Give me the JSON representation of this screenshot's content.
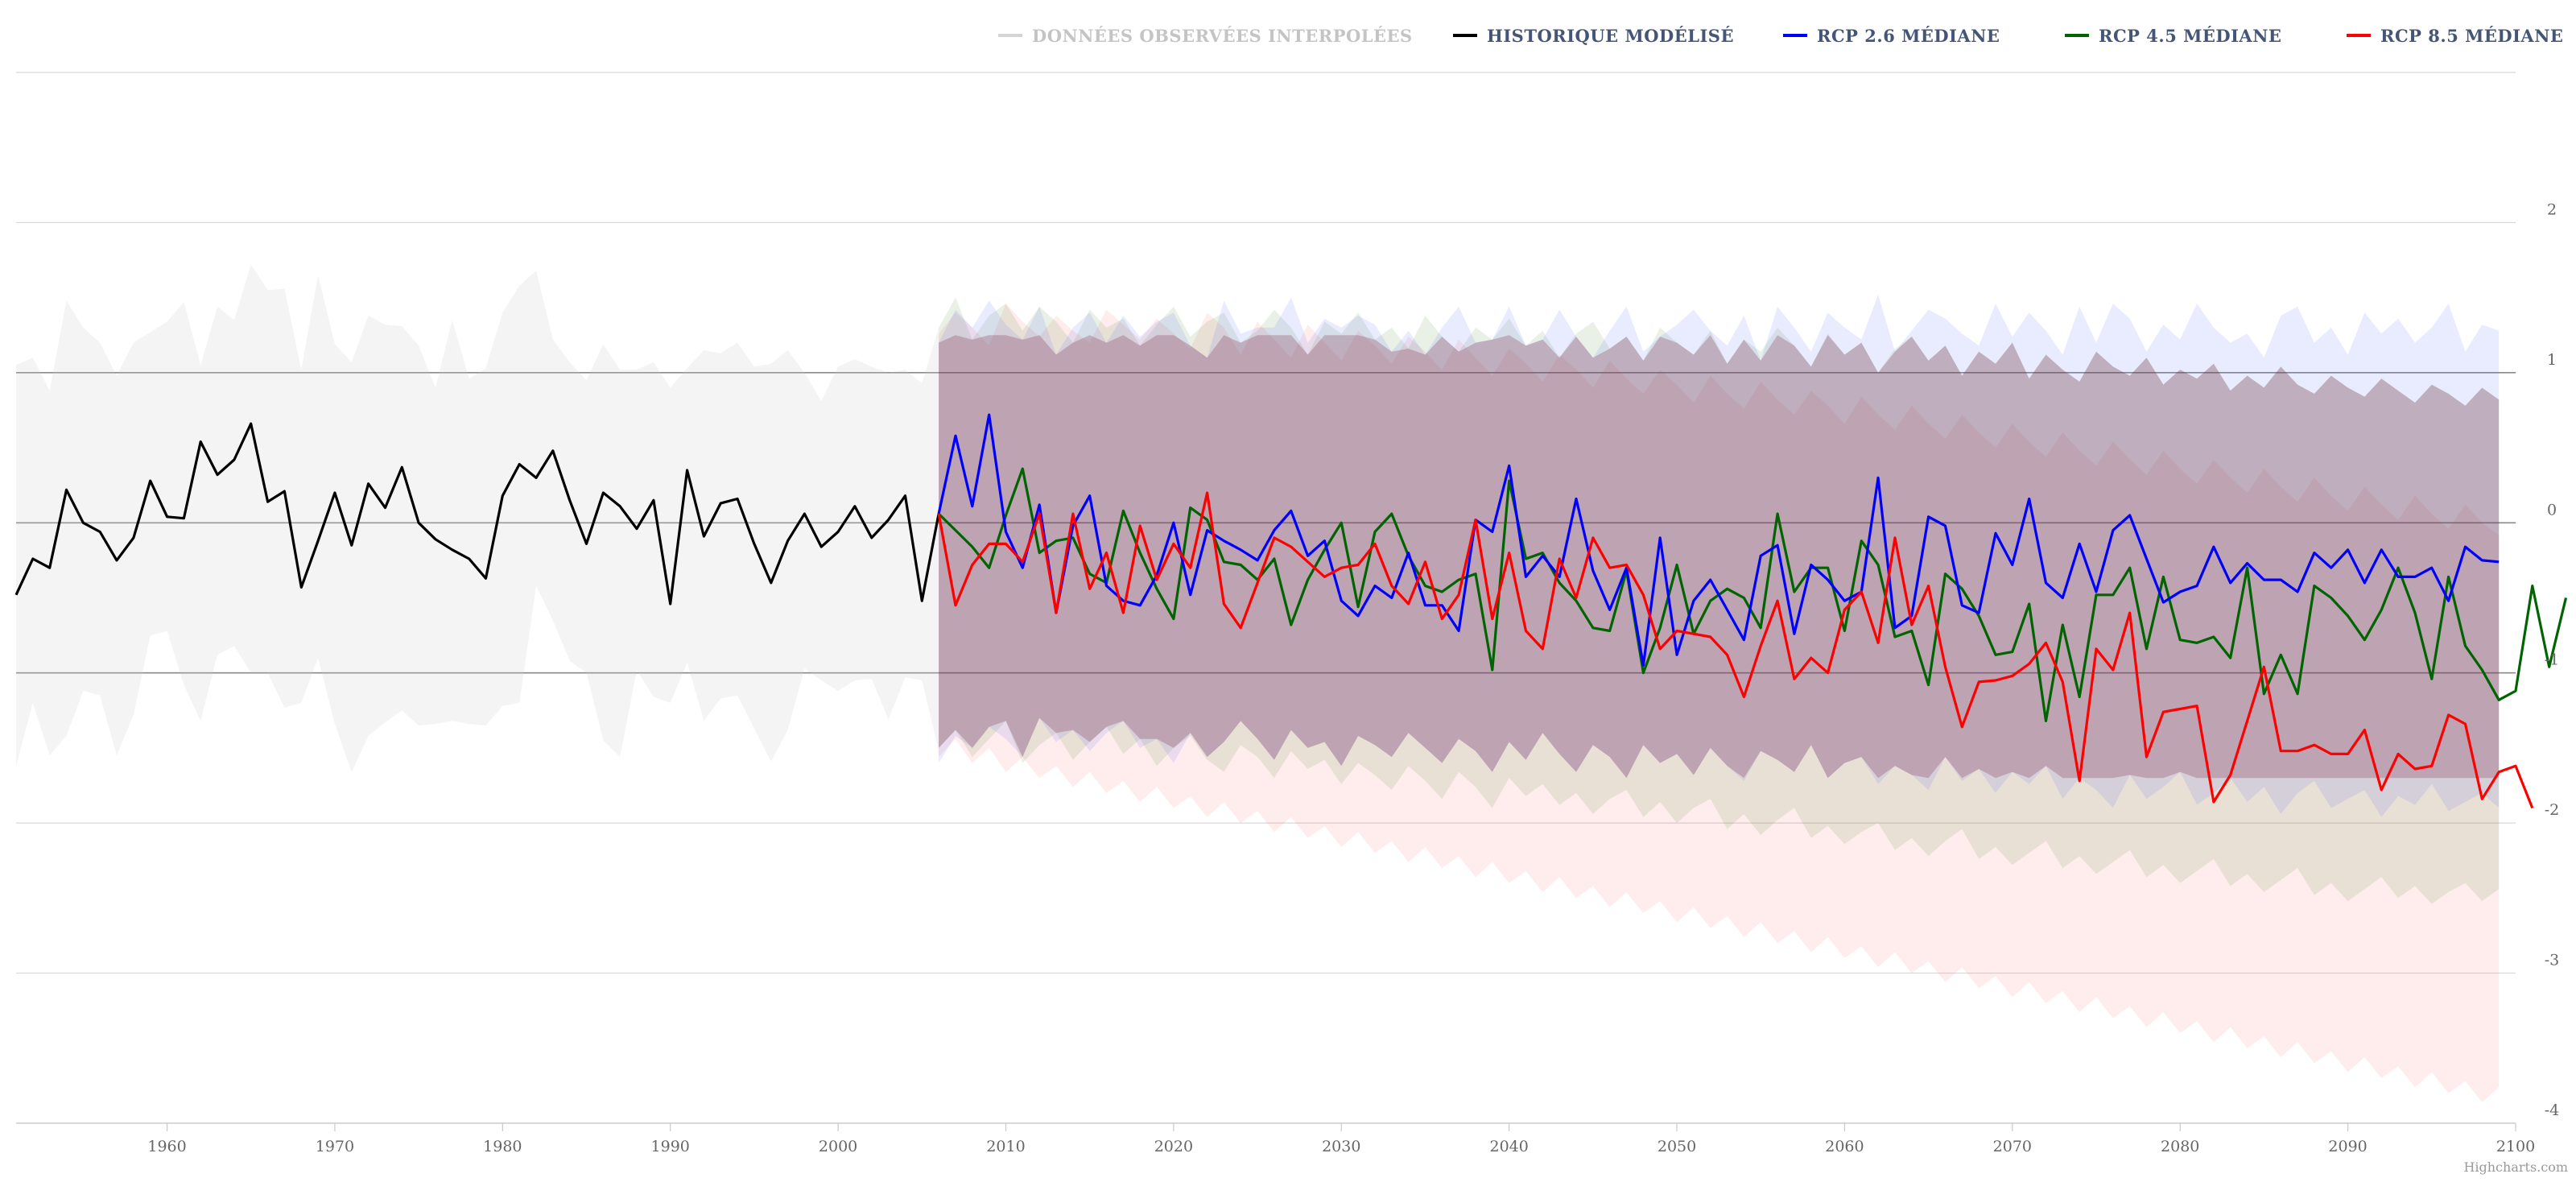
{
  "colors": {
    "observed": "#d4d4d4",
    "historical": "#000000",
    "rcp26": "#0000ff",
    "rcp45": "#006400",
    "rcp85": "#ff0000",
    "legend_text": "#445577",
    "legend_text_muted": "#c4c4c4"
  },
  "credits": "Highcharts.com",
  "chart_data": {
    "type": "line",
    "xlim": [
      1951,
      2100
    ],
    "ylim": [
      -4,
      3
    ],
    "x_ticks": [
      1960,
      1970,
      1980,
      1990,
      2000,
      2010,
      2020,
      2030,
      2040,
      2050,
      2060,
      2070,
      2080,
      2090,
      2100
    ],
    "y_ticks": [
      2,
      1,
      0,
      -1,
      -2,
      -3,
      -4
    ],
    "grid": true,
    "legend_position": "top-right",
    "legend": [
      {
        "key": "observed",
        "label": "DONNÉES OBSERVÉES INTERPOLÉES",
        "muted": true
      },
      {
        "key": "historical",
        "label": "HISTORIQUE MODÉLISÉ",
        "muted": false
      },
      {
        "key": "rcp26",
        "label": "RCP 2.6 MÉDIANE",
        "muted": false
      },
      {
        "key": "rcp45",
        "label": "RCP 4.5 MÉDIANE",
        "muted": false
      },
      {
        "key": "rcp85",
        "label": "RCP 8.5 MÉDIANE",
        "muted": false
      }
    ],
    "historical": {
      "x_start": 1951,
      "values": [
        -0.48,
        -0.24,
        -0.3,
        0.22,
        0.0,
        -0.06,
        -0.25,
        -0.1,
        0.28,
        0.04,
        0.03,
        0.54,
        0.32,
        0.42,
        0.66,
        0.14,
        0.21,
        -0.43,
        -0.12,
        0.2,
        -0.15,
        0.26,
        0.1,
        0.37,
        0.0,
        -0.11,
        -0.18,
        -0.24,
        -0.37,
        0.18,
        0.39,
        0.3,
        0.48,
        0.15,
        -0.14,
        0.2,
        0.11,
        -0.04,
        0.15,
        -0.54,
        0.35,
        -0.09,
        0.13,
        0.16,
        -0.14,
        -0.4,
        -0.12,
        0.06,
        -0.16,
        -0.06,
        0.11,
        -0.1,
        0.02,
        0.18,
        -0.52,
        0.06
      ]
    },
    "historical_band": {
      "x_start": 1951,
      "upper": [
        1.05,
        1.1,
        0.88,
        1.48,
        1.3,
        1.2,
        0.98,
        1.2,
        1.27,
        1.34,
        1.47,
        1.05,
        1.44,
        1.35,
        1.72,
        1.55,
        1.56,
        1.02,
        1.65,
        1.19,
        1.07,
        1.38,
        1.32,
        1.31,
        1.18,
        0.9,
        1.35,
        0.96,
        1.03,
        1.4,
        1.58,
        1.68,
        1.22,
        1.07,
        0.95,
        1.19,
        1.02,
        1.02,
        1.07,
        0.9,
        1.03,
        1.15,
        1.13,
        1.2,
        1.04,
        1.06,
        1.15,
        1.0,
        0.81,
        1.04,
        1.09,
        1.04,
        1.0,
        1.02,
        0.93,
        1.3
      ],
      "lower": [
        -1.62,
        -1.2,
        -1.55,
        -1.42,
        -1.12,
        -1.15,
        -1.55,
        -1.28,
        -0.75,
        -0.72,
        -1.08,
        -1.32,
        -0.88,
        -0.82,
        -1.0,
        -1.0,
        -1.23,
        -1.2,
        -0.9,
        -1.34,
        -1.66,
        -1.42,
        -1.33,
        -1.25,
        -1.35,
        -1.34,
        -1.32,
        -1.34,
        -1.35,
        -1.22,
        -1.2,
        -0.42,
        -0.65,
        -0.92,
        -1.0,
        -1.45,
        -1.56,
        -0.98,
        -1.16,
        -1.2,
        -0.93,
        -1.32,
        -1.17,
        -1.15,
        -1.37,
        -1.59,
        -1.38,
        -0.97,
        -1.05,
        -1.12,
        -1.05,
        -1.04,
        -1.31,
        -1.03,
        -1.05,
        -1.52
      ]
    },
    "rcp26": {
      "x_start": 2006,
      "values": [
        0.06,
        0.58,
        0.11,
        0.72,
        -0.06,
        -0.3,
        0.12,
        -0.6,
        -0.02,
        0.18,
        -0.42,
        -0.52,
        -0.55,
        -0.35,
        0.0,
        -0.48,
        -0.05,
        -0.12,
        -0.18,
        -0.25,
        -0.05,
        0.08,
        -0.22,
        -0.12,
        -0.52,
        -0.62,
        -0.42,
        -0.5,
        -0.2,
        -0.55,
        -0.55,
        -0.72,
        0.02,
        -0.06,
        0.38,
        -0.36,
        -0.22,
        -0.36,
        0.16,
        -0.32,
        -0.58,
        -0.3,
        -0.95,
        -0.1,
        -0.88,
        -0.52,
        -0.38,
        -0.58,
        -0.78,
        -0.22,
        -0.15,
        -0.74,
        -0.28,
        -0.38,
        -0.52,
        -0.46,
        0.3,
        -0.7,
        -0.62,
        0.04,
        -0.02,
        -0.55,
        -0.6,
        -0.07,
        -0.28,
        0.16,
        -0.4,
        -0.5,
        -0.14,
        -0.46,
        -0.05,
        0.05,
        -0.24,
        -0.53,
        -0.46,
        -0.42,
        -0.16,
        -0.4,
        -0.27,
        -0.38,
        -0.38,
        -0.46,
        -0.2,
        -0.3,
        -0.18,
        -0.4,
        -0.18,
        -0.36,
        -0.36,
        -0.3,
        -0.52,
        -0.16,
        -0.25,
        -0.26
      ]
    },
    "rcp45": {
      "x_start": 2006,
      "values": [
        0.06,
        -0.05,
        -0.16,
        -0.3,
        0.05,
        0.36,
        -0.2,
        -0.12,
        -0.1,
        -0.34,
        -0.4,
        0.08,
        -0.2,
        -0.44,
        -0.64,
        0.1,
        0.02,
        -0.26,
        -0.28,
        -0.38,
        -0.24,
        -0.68,
        -0.38,
        -0.18,
        0.0,
        -0.56,
        -0.06,
        0.06,
        -0.22,
        -0.42,
        -0.46,
        -0.38,
        -0.34,
        -0.98,
        0.28,
        -0.24,
        -0.2,
        -0.4,
        -0.52,
        -0.7,
        -0.72,
        -0.32,
        -1.0,
        -0.7,
        -0.28,
        -0.74,
        -0.52,
        -0.44,
        -0.5,
        -0.7,
        0.06,
        -0.46,
        -0.3,
        -0.3,
        -0.72,
        -0.12,
        -0.28,
        -0.76,
        -0.72,
        -1.08,
        -0.34,
        -0.44,
        -0.62,
        -0.88,
        -0.86,
        -0.54,
        -1.32,
        -0.68,
        -1.16,
        -0.48,
        -0.48,
        -0.3,
        -0.84,
        -0.36,
        -0.78,
        -0.8,
        -0.76,
        -0.9,
        -0.3,
        -1.14,
        -0.88,
        -1.14,
        -0.42,
        -0.5,
        -0.62,
        -0.78,
        -0.58,
        -0.3,
        -0.6,
        -1.04,
        -0.36,
        -0.82,
        -0.98,
        -1.18,
        -1.12,
        -0.42,
        -0.96,
        -0.5
      ]
    },
    "rcp85": {
      "x_start": 2006,
      "values": [
        0.06,
        -0.55,
        -0.28,
        -0.14,
        -0.14,
        -0.26,
        0.06,
        -0.6,
        0.06,
        -0.44,
        -0.2,
        -0.6,
        -0.02,
        -0.38,
        -0.14,
        -0.3,
        0.2,
        -0.54,
        -0.7,
        -0.4,
        -0.1,
        -0.16,
        -0.26,
        -0.36,
        -0.3,
        -0.28,
        -0.14,
        -0.42,
        -0.54,
        -0.26,
        -0.64,
        -0.48,
        0.02,
        -0.64,
        -0.2,
        -0.72,
        -0.84,
        -0.24,
        -0.5,
        -0.1,
        -0.3,
        -0.28,
        -0.48,
        -0.84,
        -0.72,
        -0.74,
        -0.76,
        -0.88,
        -1.16,
        -0.82,
        -0.52,
        -1.04,
        -0.9,
        -1.0,
        -0.58,
        -0.46,
        -0.8,
        -0.1,
        -0.68,
        -0.42,
        -0.96,
        -1.36,
        -1.06,
        -1.05,
        -1.02,
        -0.94,
        -0.8,
        -1.06,
        -1.72,
        -0.84,
        -0.98,
        -0.6,
        -1.56,
        -1.26,
        -1.24,
        -1.22,
        -1.86,
        -1.68,
        -1.32,
        -0.96,
        -1.52,
        -1.52,
        -1.48,
        -1.54,
        -1.54,
        -1.38,
        -1.78,
        -1.54,
        -1.64,
        -1.62,
        -1.28,
        -1.34,
        -1.84,
        -1.66,
        -1.62,
        -1.9
      ]
    },
    "rcp26_band": {
      "x_start": 2006,
      "upper": [
        1.2,
        1.42,
        1.3,
        1.48,
        1.32,
        1.22,
        1.44,
        1.12,
        1.3,
        1.4,
        1.2,
        1.38,
        1.24,
        1.34,
        1.4,
        1.18,
        1.1,
        1.48,
        1.26,
        1.3,
        1.3,
        1.5,
        1.2,
        1.36,
        1.3,
        1.38,
        1.32,
        1.14,
        1.28,
        1.12,
        1.3,
        1.44,
        1.2,
        1.22,
        1.44,
        1.18,
        1.22,
        1.42,
        1.24,
        1.1,
        1.28,
        1.44,
        1.14,
        1.24,
        1.32,
        1.42,
        1.28,
        1.18,
        1.38,
        1.08,
        1.44,
        1.3,
        1.14,
        1.4,
        1.3,
        1.22,
        1.52,
        1.14,
        1.28,
        1.42,
        1.36,
        1.26,
        1.18,
        1.46,
        1.24,
        1.4,
        1.28,
        1.12,
        1.44,
        1.2,
        1.46,
        1.36,
        1.14,
        1.32,
        1.22,
        1.46,
        1.3,
        1.2,
        1.26,
        1.1,
        1.38,
        1.44,
        1.2,
        1.3,
        1.12,
        1.4,
        1.26,
        1.36,
        1.2,
        1.3,
        1.46,
        1.14,
        1.32,
        1.28
      ],
      "lower": [
        -1.6,
        -1.42,
        -1.5,
        -1.36,
        -1.44,
        -1.56,
        -1.3,
        -1.46,
        -1.38,
        -1.52,
        -1.4,
        -1.32,
        -1.5,
        -1.44,
        -1.6,
        -1.4,
        -1.56,
        -1.46,
        -1.32,
        -1.44,
        -1.58,
        -1.38,
        -1.5,
        -1.46,
        -1.62,
        -1.42,
        -1.48,
        -1.56,
        -1.4,
        -1.5,
        -1.6,
        -1.44,
        -1.52,
        -1.66,
        -1.46,
        -1.58,
        -1.4,
        -1.54,
        -1.66,
        -1.48,
        -1.56,
        -1.7,
        -1.48,
        -1.6,
        -1.54,
        -1.68,
        -1.5,
        -1.62,
        -1.72,
        -1.52,
        -1.58,
        -1.66,
        -1.48,
        -1.7,
        -1.6,
        -1.56,
        -1.74,
        -1.62,
        -1.68,
        -1.78,
        -1.56,
        -1.72,
        -1.64,
        -1.8,
        -1.66,
        -1.74,
        -1.62,
        -1.84,
        -1.7,
        -1.78,
        -1.9,
        -1.68,
        -1.84,
        -1.76,
        -1.66,
        -1.88,
        -1.8,
        -1.7,
        -1.86,
        -1.76,
        -1.94,
        -1.8,
        -1.72,
        -1.9,
        -1.84,
        -1.78,
        -1.96,
        -1.82,
        -1.88,
        -1.74,
        -1.92,
        -1.86,
        -1.8,
        -1.9
      ]
    },
    "rcp45_band": {
      "x_start": 2006,
      "upper": [
        1.3,
        1.5,
        1.22,
        1.38,
        1.46,
        1.28,
        1.44,
        1.34,
        1.2,
        1.42,
        1.3,
        1.36,
        1.18,
        1.32,
        1.44,
        1.24,
        1.34,
        1.4,
        1.2,
        1.28,
        1.42,
        1.3,
        1.12,
        1.34,
        1.26,
        1.4,
        1.22,
        1.3,
        1.16,
        1.38,
        1.24,
        1.14,
        1.3,
        1.22,
        1.36,
        1.18,
        1.28,
        1.1,
        1.26,
        1.34,
        1.16,
        1.24,
        1.08,
        1.3,
        1.2,
        1.12,
        1.28,
        1.06,
        1.22,
        1.14,
        1.3,
        1.18,
        1.04,
        1.26,
        1.12,
        1.2,
        1.0,
        1.16,
        1.24,
        1.08,
        1.18,
        0.98,
        1.14,
        1.06,
        1.2,
        0.96,
        1.12,
        1.02,
        0.94,
        1.14,
        1.04,
        0.98,
        1.1,
        0.92,
        1.02,
        0.96,
        1.06,
        0.88,
        0.98,
        0.9,
        1.04,
        0.92,
        0.86,
        0.98,
        0.9,
        0.84,
        0.96,
        0.88,
        0.8,
        0.92,
        0.86,
        0.78,
        0.9,
        0.82
      ],
      "lower": [
        -1.5,
        -1.38,
        -1.56,
        -1.44,
        -1.32,
        -1.6,
        -1.48,
        -1.4,
        -1.58,
        -1.46,
        -1.36,
        -1.54,
        -1.44,
        -1.62,
        -1.5,
        -1.42,
        -1.58,
        -1.66,
        -1.48,
        -1.56,
        -1.7,
        -1.52,
        -1.64,
        -1.58,
        -1.74,
        -1.6,
        -1.68,
        -1.78,
        -1.62,
        -1.72,
        -1.84,
        -1.66,
        -1.76,
        -1.9,
        -1.7,
        -1.82,
        -1.74,
        -1.88,
        -1.8,
        -1.94,
        -1.84,
        -1.78,
        -1.96,
        -1.86,
        -2.0,
        -1.9,
        -1.84,
        -2.04,
        -1.94,
        -2.08,
        -1.98,
        -1.9,
        -2.1,
        -2.02,
        -2.14,
        -2.06,
        -2.0,
        -2.18,
        -2.1,
        -2.22,
        -2.12,
        -2.04,
        -2.24,
        -2.16,
        -2.28,
        -2.2,
        -2.12,
        -2.3,
        -2.22,
        -2.34,
        -2.26,
        -2.18,
        -2.36,
        -2.28,
        -2.4,
        -2.32,
        -2.24,
        -2.42,
        -2.34,
        -2.46,
        -2.38,
        -2.3,
        -2.48,
        -2.4,
        -2.52,
        -2.44,
        -2.36,
        -2.5,
        -2.42,
        -2.54,
        -2.46,
        -2.4,
        -2.52,
        -2.44
      ]
    },
    "rcp85_band": {
      "x_start": 2006,
      "upper": [
        1.26,
        1.4,
        1.3,
        1.18,
        1.46,
        1.34,
        1.24,
        1.38,
        1.28,
        1.2,
        1.42,
        1.32,
        1.22,
        1.36,
        1.26,
        1.16,
        1.4,
        1.3,
        1.12,
        1.34,
        1.22,
        1.1,
        1.32,
        1.2,
        1.08,
        1.28,
        1.18,
        1.06,
        1.24,
        1.14,
        1.02,
        1.22,
        1.1,
        0.98,
        1.16,
        1.06,
        0.94,
        1.12,
        1.02,
        0.9,
        1.08,
        0.96,
        0.86,
        1.02,
        0.92,
        0.8,
        0.98,
        0.86,
        0.76,
        0.94,
        0.82,
        0.72,
        0.88,
        0.78,
        0.66,
        0.84,
        0.72,
        0.62,
        0.78,
        0.66,
        0.56,
        0.72,
        0.6,
        0.5,
        0.66,
        0.54,
        0.44,
        0.6,
        0.48,
        0.38,
        0.54,
        0.42,
        0.32,
        0.48,
        0.36,
        0.26,
        0.42,
        0.3,
        0.2,
        0.36,
        0.24,
        0.14,
        0.3,
        0.18,
        0.08,
        0.24,
        0.12,
        0.02,
        0.18,
        0.06,
        -0.04,
        0.12,
        0.0,
        -0.08
      ],
      "lower": [
        -1.56,
        -1.44,
        -1.6,
        -1.5,
        -1.66,
        -1.56,
        -1.7,
        -1.62,
        -1.76,
        -1.66,
        -1.8,
        -1.72,
        -1.86,
        -1.76,
        -1.9,
        -1.82,
        -1.96,
        -1.86,
        -2.0,
        -1.92,
        -2.06,
        -1.96,
        -2.1,
        -2.02,
        -2.16,
        -2.06,
        -2.2,
        -2.12,
        -2.26,
        -2.16,
        -2.3,
        -2.22,
        -2.36,
        -2.26,
        -2.4,
        -2.32,
        -2.46,
        -2.36,
        -2.5,
        -2.42,
        -2.56,
        -2.46,
        -2.6,
        -2.52,
        -2.66,
        -2.56,
        -2.7,
        -2.62,
        -2.76,
        -2.66,
        -2.8,
        -2.72,
        -2.86,
        -2.76,
        -2.9,
        -2.82,
        -2.96,
        -2.86,
        -3.0,
        -2.92,
        -3.06,
        -2.96,
        -3.1,
        -3.02,
        -3.16,
        -3.06,
        -3.2,
        -3.12,
        -3.26,
        -3.16,
        -3.3,
        -3.22,
        -3.36,
        -3.26,
        -3.4,
        -3.32,
        -3.46,
        -3.36,
        -3.5,
        -3.42,
        -3.56,
        -3.46,
        -3.6,
        -3.52,
        -3.66,
        -3.56,
        -3.7,
        -3.62,
        -3.76,
        -3.66,
        -3.8,
        -3.72,
        -3.86,
        -3.76
      ]
    }
  }
}
